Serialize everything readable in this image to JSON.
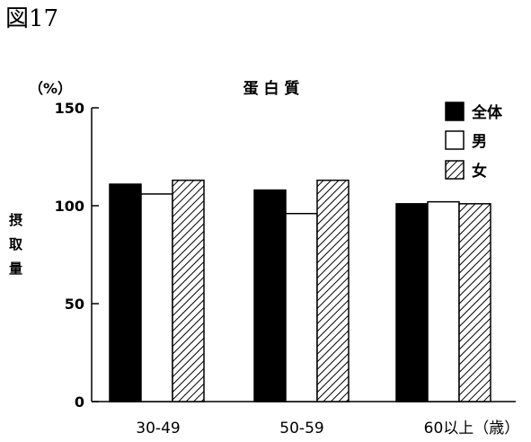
{
  "figure_label": "図17",
  "chart_data": {
    "type": "bar",
    "title": "蛋 白 質",
    "unit_label": "（%）",
    "ylabel": "摂取量",
    "ylim": [
      0,
      150
    ],
    "yticks": [
      0,
      50,
      100,
      150
    ],
    "categories": [
      "30-49",
      "50-59",
      "60以上（歳）"
    ],
    "series": [
      {
        "name": "全体",
        "values": [
          111,
          108,
          101
        ]
      },
      {
        "name": "男",
        "values": [
          106,
          96,
          102
        ]
      },
      {
        "name": "女",
        "values": [
          113,
          113,
          101
        ]
      }
    ],
    "legend_position": "top-right",
    "series_fills": [
      "#000000",
      "#ffffff",
      "hatched"
    ]
  }
}
